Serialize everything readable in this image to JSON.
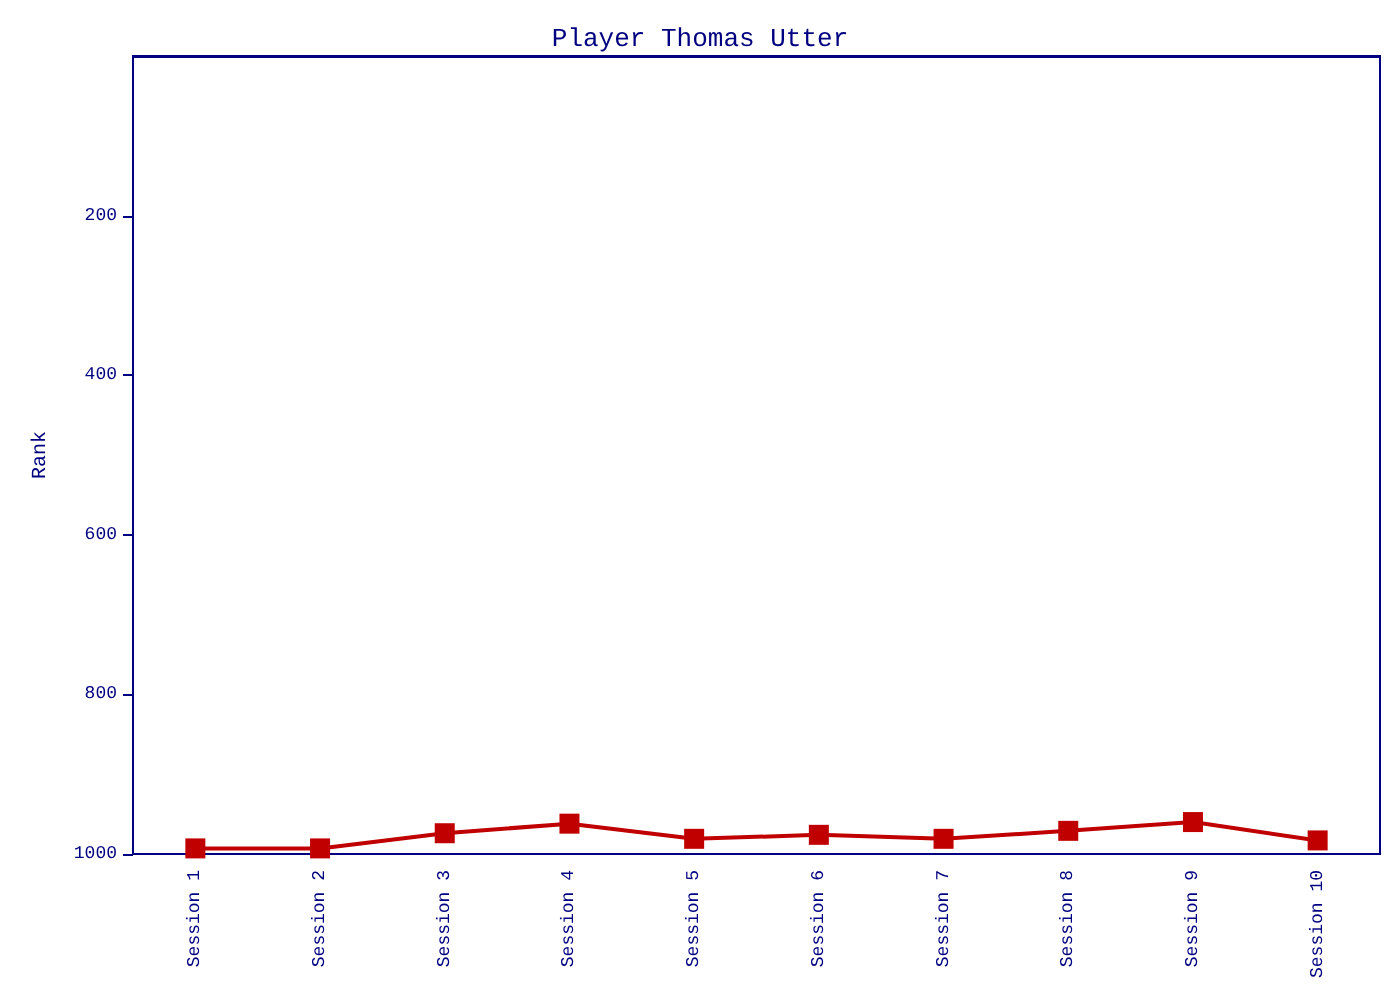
{
  "chart_data": {
    "type": "line",
    "title": "Player Thomas Utter",
    "ylabel": "Rank",
    "categories": [
      "Session 1",
      "Session 2",
      "Session 3",
      "Session 4",
      "Session 5",
      "Session 6",
      "Session 7",
      "Session 8",
      "Session 9",
      "Session 10"
    ],
    "series": [
      {
        "color": "#c00000",
        "values": [
          993,
          993,
          974,
          962,
          981,
          976,
          981,
          971,
          960,
          983
        ]
      }
    ],
    "ylim": [
      1000,
      0
    ],
    "yticks": [
      200,
      400,
      600,
      800,
      1000
    ],
    "grid": false,
    "marker": "square",
    "line_style": "solid"
  }
}
